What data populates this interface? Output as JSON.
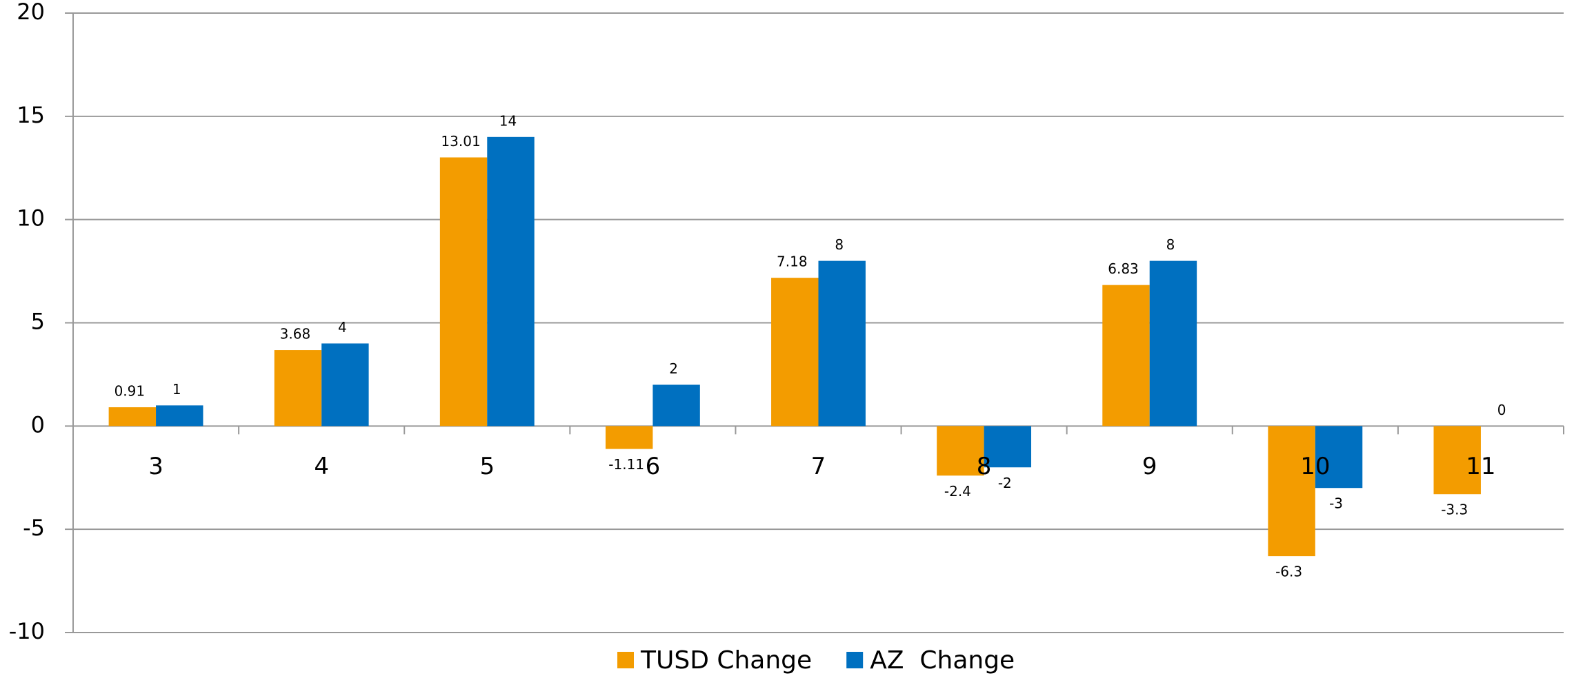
{
  "chart_data": {
    "type": "bar",
    "categories": [
      "3",
      "4",
      "5",
      "6",
      "7",
      "8",
      "9",
      "10",
      "11"
    ],
    "series": [
      {
        "name": "TUSD Change",
        "color": "#f39c00",
        "values": [
          0.91,
          3.68,
          13.01,
          -1.11,
          7.18,
          -2.4,
          6.83,
          -6.3,
          -3.3
        ]
      },
      {
        "name": "AZ  Change",
        "color": "#0070c0",
        "values": [
          1,
          4,
          14,
          2,
          8,
          -2,
          8,
          -3,
          0
        ]
      }
    ],
    "ylim": [
      -10,
      20
    ],
    "yticks": [
      -10,
      -5,
      0,
      5,
      10,
      15,
      20
    ],
    "grid": true,
    "legend": "bottom"
  }
}
